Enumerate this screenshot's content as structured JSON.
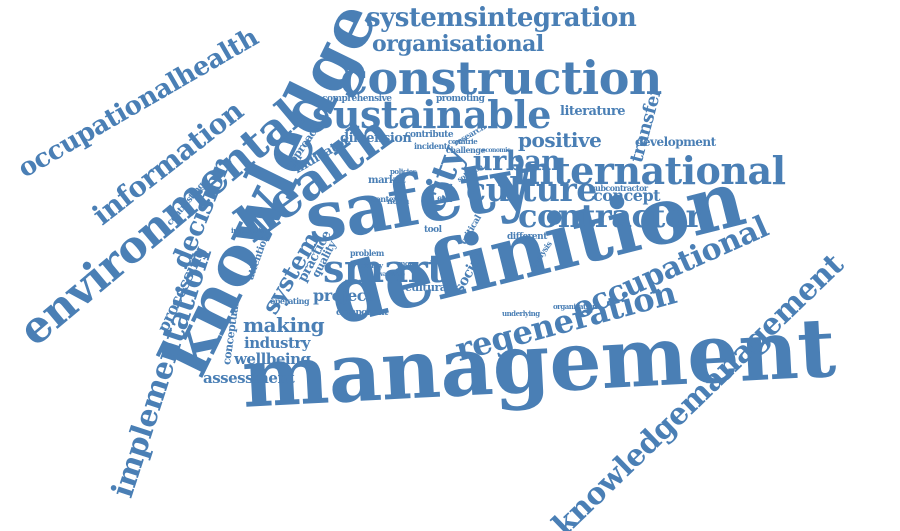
{
  "accent_color": "#4a7fb5",
  "words": [
    {
      "t": "management"
    },
    {
      "t": "definition"
    },
    {
      "t": "safety"
    },
    {
      "t": "knowledge"
    },
    {
      "t": "construction"
    },
    {
      "t": "sustainable"
    },
    {
      "t": "environmental"
    },
    {
      "t": "knowledgemanagement"
    },
    {
      "t": "health"
    },
    {
      "t": "international"
    },
    {
      "t": "occupationalhealth"
    },
    {
      "t": "information"
    },
    {
      "t": "smart"
    },
    {
      "t": "regeneration"
    },
    {
      "t": "contractor"
    },
    {
      "t": "occupational"
    },
    {
      "t": "culture"
    },
    {
      "t": "implementation"
    },
    {
      "t": "systemsintegration"
    },
    {
      "t": "organisational"
    },
    {
      "t": "urban"
    },
    {
      "t": "city"
    },
    {
      "t": "positive"
    },
    {
      "t": "decision"
    },
    {
      "t": "system"
    },
    {
      "t": "making"
    },
    {
      "t": "project"
    },
    {
      "t": "industry"
    },
    {
      "t": "wellbeing"
    },
    {
      "t": "assessment"
    },
    {
      "t": "processing"
    },
    {
      "t": "concept"
    },
    {
      "t": "transfer"
    },
    {
      "t": "literature"
    },
    {
      "t": "development"
    },
    {
      "t": "indicator"
    },
    {
      "t": "practice"
    },
    {
      "t": "dimension"
    },
    {
      "t": "approach"
    },
    {
      "t": "quality"
    },
    {
      "t": "cultural"
    },
    {
      "t": "social"
    },
    {
      "t": "market"
    },
    {
      "t": "conceptual"
    },
    {
      "t": "attention"
    },
    {
      "t": "comprehensive"
    },
    {
      "t": "contribute"
    },
    {
      "t": "promoting"
    },
    {
      "t": "research"
    },
    {
      "t": "contrasting"
    },
    {
      "t": "subcontractor"
    },
    {
      "t": "context"
    },
    {
      "t": "norm"
    },
    {
      "t": "tool"
    },
    {
      "t": "different"
    },
    {
      "t": "component"
    },
    {
      "t": "operating"
    },
    {
      "t": "problem"
    },
    {
      "t": "challenge"
    },
    {
      "t": "incident"
    },
    {
      "t": "countrie"
    },
    {
      "t": "critical"
    },
    {
      "t": "analysis"
    },
    {
      "t": "policies"
    },
    {
      "t": "imperative"
    },
    {
      "t": "clarity"
    },
    {
      "t": "organisation"
    },
    {
      "t": "underlying"
    },
    {
      "t": "economic"
    },
    {
      "t": "solution"
    },
    {
      "t": "firm"
    },
    {
      "t": "more"
    },
    {
      "t": "variance"
    }
  ]
}
